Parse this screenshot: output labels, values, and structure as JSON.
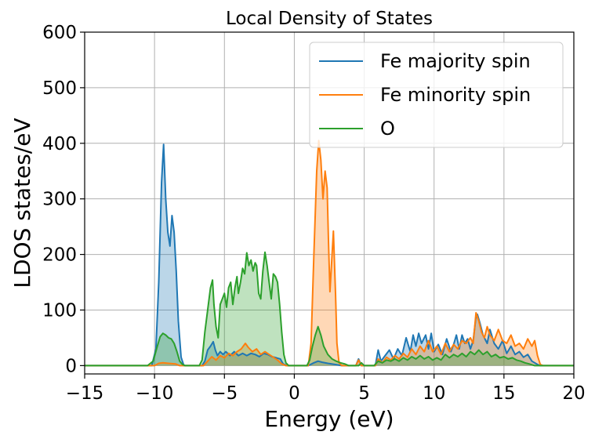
{
  "chart_data": {
    "type": "area",
    "title": "Local Density of States",
    "xlabel": "Energy (eV)",
    "ylabel": "LDOS states/eV",
    "xlim": [
      -15,
      20
    ],
    "ylim": [
      -15,
      600
    ],
    "xticks": [
      -15,
      -10,
      -5,
      0,
      5,
      10,
      15,
      20
    ],
    "xtick_labels": [
      "−15",
      "−10",
      "−5",
      "0",
      "5",
      "10",
      "15",
      "20"
    ],
    "yticks": [
      0,
      100,
      200,
      300,
      400,
      500,
      600
    ],
    "ytick_labels": [
      "0",
      "100",
      "200",
      "300",
      "400",
      "500",
      "600"
    ],
    "grid": true,
    "legend_position": "top-right",
    "series": [
      {
        "name": "Fe majority spin",
        "color": "#1f77b4",
        "fill": true,
        "points": [
          [
            -15,
            0
          ],
          [
            -10.2,
            0
          ],
          [
            -9.9,
            30
          ],
          [
            -9.7,
            150
          ],
          [
            -9.5,
            330
          ],
          [
            -9.35,
            398
          ],
          [
            -9.2,
            300
          ],
          [
            -9.05,
            240
          ],
          [
            -8.9,
            215
          ],
          [
            -8.75,
            270
          ],
          [
            -8.6,
            240
          ],
          [
            -8.45,
            170
          ],
          [
            -8.3,
            80
          ],
          [
            -8.1,
            15
          ],
          [
            -7.9,
            0
          ],
          [
            -6.6,
            0
          ],
          [
            -6.4,
            8
          ],
          [
            -6.2,
            28
          ],
          [
            -6.0,
            35
          ],
          [
            -5.8,
            43
          ],
          [
            -5.65,
            28
          ],
          [
            -5.5,
            18
          ],
          [
            -5.3,
            25
          ],
          [
            -5.1,
            20
          ],
          [
            -4.9,
            25
          ],
          [
            -4.6,
            18
          ],
          [
            -4.3,
            25
          ],
          [
            -4.0,
            18
          ],
          [
            -3.7,
            22
          ],
          [
            -3.4,
            18
          ],
          [
            -3.1,
            22
          ],
          [
            -2.8,
            20
          ],
          [
            -2.5,
            16
          ],
          [
            -2.2,
            22
          ],
          [
            -1.9,
            20
          ],
          [
            -1.6,
            16
          ],
          [
            -1.3,
            14
          ],
          [
            -1.0,
            12
          ],
          [
            -0.8,
            3
          ],
          [
            -0.5,
            0
          ],
          [
            1.0,
            0
          ],
          [
            1.4,
            5
          ],
          [
            1.7,
            8
          ],
          [
            2.0,
            6
          ],
          [
            2.4,
            4
          ],
          [
            2.9,
            2
          ],
          [
            3.4,
            0
          ],
          [
            4.4,
            0
          ],
          [
            4.6,
            12
          ],
          [
            4.8,
            0
          ],
          [
            5.8,
            0
          ],
          [
            6.0,
            28
          ],
          [
            6.2,
            8
          ],
          [
            6.5,
            18
          ],
          [
            6.8,
            28
          ],
          [
            7.1,
            12
          ],
          [
            7.4,
            30
          ],
          [
            7.7,
            18
          ],
          [
            8.0,
            50
          ],
          [
            8.3,
            25
          ],
          [
            8.5,
            55
          ],
          [
            8.7,
            35
          ],
          [
            8.9,
            58
          ],
          [
            9.1,
            40
          ],
          [
            9.4,
            55
          ],
          [
            9.6,
            30
          ],
          [
            9.8,
            58
          ],
          [
            10.0,
            25
          ],
          [
            10.3,
            38
          ],
          [
            10.6,
            20
          ],
          [
            10.9,
            48
          ],
          [
            11.2,
            25
          ],
          [
            11.4,
            38
          ],
          [
            11.6,
            55
          ],
          [
            11.8,
            30
          ],
          [
            12.0,
            55
          ],
          [
            12.2,
            40
          ],
          [
            12.4,
            48
          ],
          [
            12.6,
            30
          ],
          [
            12.8,
            45
          ],
          [
            13.0,
            88
          ],
          [
            13.1,
            92
          ],
          [
            13.3,
            75
          ],
          [
            13.5,
            55
          ],
          [
            13.8,
            40
          ],
          [
            14.0,
            65
          ],
          [
            14.3,
            40
          ],
          [
            14.6,
            30
          ],
          [
            14.9,
            45
          ],
          [
            15.2,
            22
          ],
          [
            15.5,
            35
          ],
          [
            15.8,
            20
          ],
          [
            16.1,
            25
          ],
          [
            16.4,
            15
          ],
          [
            16.7,
            20
          ],
          [
            17.0,
            8
          ],
          [
            17.4,
            2
          ],
          [
            17.6,
            0
          ],
          [
            20,
            0
          ]
        ]
      },
      {
        "name": "Fe minority spin",
        "color": "#ff7f0e",
        "fill": true,
        "points": [
          [
            -15,
            0
          ],
          [
            -10.0,
            0
          ],
          [
            -9.7,
            4
          ],
          [
            -9.4,
            5
          ],
          [
            -9.0,
            4
          ],
          [
            -8.5,
            3
          ],
          [
            -8.2,
            0
          ],
          [
            -6.5,
            0
          ],
          [
            -6.2,
            8
          ],
          [
            -5.9,
            16
          ],
          [
            -5.6,
            10
          ],
          [
            -5.3,
            18
          ],
          [
            -5.0,
            14
          ],
          [
            -4.7,
            22
          ],
          [
            -4.4,
            18
          ],
          [
            -4.1,
            25
          ],
          [
            -3.8,
            30
          ],
          [
            -3.5,
            40
          ],
          [
            -3.3,
            33
          ],
          [
            -3.0,
            25
          ],
          [
            -2.7,
            30
          ],
          [
            -2.4,
            20
          ],
          [
            -2.1,
            25
          ],
          [
            -1.8,
            20
          ],
          [
            -1.5,
            15
          ],
          [
            -1.2,
            10
          ],
          [
            -0.9,
            3
          ],
          [
            -0.6,
            0
          ],
          [
            1.0,
            0
          ],
          [
            1.2,
            40
          ],
          [
            1.4,
            200
          ],
          [
            1.6,
            350
          ],
          [
            1.75,
            405
          ],
          [
            1.9,
            370
          ],
          [
            2.05,
            300
          ],
          [
            2.2,
            350
          ],
          [
            2.35,
            320
          ],
          [
            2.45,
            220
          ],
          [
            2.55,
            133
          ],
          [
            2.7,
            200
          ],
          [
            2.8,
            242
          ],
          [
            2.95,
            130
          ],
          [
            3.05,
            40
          ],
          [
            3.2,
            5
          ],
          [
            3.4,
            0
          ],
          [
            4.4,
            0
          ],
          [
            4.6,
            10
          ],
          [
            4.8,
            0
          ],
          [
            5.8,
            0
          ],
          [
            6.0,
            12
          ],
          [
            6.3,
            5
          ],
          [
            6.6,
            15
          ],
          [
            6.9,
            10
          ],
          [
            7.2,
            18
          ],
          [
            7.5,
            12
          ],
          [
            7.8,
            22
          ],
          [
            8.1,
            15
          ],
          [
            8.4,
            30
          ],
          [
            8.7,
            20
          ],
          [
            9.0,
            35
          ],
          [
            9.3,
            25
          ],
          [
            9.6,
            45
          ],
          [
            9.9,
            25
          ],
          [
            10.2,
            35
          ],
          [
            10.5,
            20
          ],
          [
            10.8,
            40
          ],
          [
            11.1,
            25
          ],
          [
            11.4,
            38
          ],
          [
            11.7,
            30
          ],
          [
            12.0,
            45
          ],
          [
            12.3,
            40
          ],
          [
            12.6,
            50
          ],
          [
            12.8,
            40
          ],
          [
            13.0,
            95
          ],
          [
            13.2,
            80
          ],
          [
            13.4,
            60
          ],
          [
            13.6,
            50
          ],
          [
            13.8,
            70
          ],
          [
            14.0,
            55
          ],
          [
            14.3,
            45
          ],
          [
            14.6,
            65
          ],
          [
            14.9,
            45
          ],
          [
            15.2,
            40
          ],
          [
            15.5,
            55
          ],
          [
            15.8,
            35
          ],
          [
            16.1,
            40
          ],
          [
            16.4,
            30
          ],
          [
            16.7,
            48
          ],
          [
            17.0,
            35
          ],
          [
            17.2,
            45
          ],
          [
            17.4,
            18
          ],
          [
            17.6,
            2
          ],
          [
            17.8,
            0
          ],
          [
            20,
            0
          ]
        ]
      },
      {
        "name": "O",
        "color": "#2ca02c",
        "fill": true,
        "points": [
          [
            -15,
            0
          ],
          [
            -10.5,
            0
          ],
          [
            -10.1,
            8
          ],
          [
            -9.8,
            35
          ],
          [
            -9.6,
            52
          ],
          [
            -9.4,
            58
          ],
          [
            -9.2,
            55
          ],
          [
            -9.0,
            50
          ],
          [
            -8.8,
            48
          ],
          [
            -8.6,
            40
          ],
          [
            -8.4,
            25
          ],
          [
            -8.2,
            8
          ],
          [
            -8.0,
            2
          ],
          [
            -7.8,
            0
          ],
          [
            -6.8,
            0
          ],
          [
            -6.6,
            10
          ],
          [
            -6.4,
            60
          ],
          [
            -6.2,
            100
          ],
          [
            -6.0,
            140
          ],
          [
            -5.85,
            154
          ],
          [
            -5.75,
            110
          ],
          [
            -5.6,
            70
          ],
          [
            -5.45,
            50
          ],
          [
            -5.3,
            110
          ],
          [
            -5.15,
            120
          ],
          [
            -5.0,
            130
          ],
          [
            -4.85,
            105
          ],
          [
            -4.7,
            140
          ],
          [
            -4.55,
            150
          ],
          [
            -4.4,
            110
          ],
          [
            -4.25,
            140
          ],
          [
            -4.1,
            160
          ],
          [
            -4.0,
            130
          ],
          [
            -3.85,
            150
          ],
          [
            -3.7,
            175
          ],
          [
            -3.55,
            165
          ],
          [
            -3.4,
            203
          ],
          [
            -3.25,
            180
          ],
          [
            -3.1,
            190
          ],
          [
            -2.95,
            170
          ],
          [
            -2.8,
            185
          ],
          [
            -2.7,
            180
          ],
          [
            -2.55,
            130
          ],
          [
            -2.4,
            120
          ],
          [
            -2.25,
            170
          ],
          [
            -2.1,
            204
          ],
          [
            -1.95,
            180
          ],
          [
            -1.8,
            150
          ],
          [
            -1.65,
            120
          ],
          [
            -1.5,
            165
          ],
          [
            -1.35,
            160
          ],
          [
            -1.2,
            150
          ],
          [
            -1.05,
            110
          ],
          [
            -0.9,
            60
          ],
          [
            -0.75,
            20
          ],
          [
            -0.6,
            5
          ],
          [
            -0.4,
            0
          ],
          [
            0.9,
            0
          ],
          [
            1.1,
            10
          ],
          [
            1.3,
            35
          ],
          [
            1.5,
            55
          ],
          [
            1.7,
            70
          ],
          [
            1.9,
            55
          ],
          [
            2.1,
            35
          ],
          [
            2.4,
            20
          ],
          [
            2.7,
            12
          ],
          [
            3.0,
            8
          ],
          [
            3.3,
            5
          ],
          [
            3.6,
            3
          ],
          [
            3.9,
            0
          ],
          [
            4.6,
            0
          ],
          [
            4.8,
            5
          ],
          [
            5.0,
            0
          ],
          [
            5.7,
            0
          ],
          [
            6.0,
            8
          ],
          [
            6.3,
            5
          ],
          [
            6.6,
            10
          ],
          [
            6.9,
            8
          ],
          [
            7.2,
            12
          ],
          [
            7.5,
            8
          ],
          [
            7.8,
            14
          ],
          [
            8.1,
            10
          ],
          [
            8.4,
            16
          ],
          [
            8.7,
            12
          ],
          [
            9.0,
            18
          ],
          [
            9.3,
            12
          ],
          [
            9.6,
            16
          ],
          [
            9.9,
            10
          ],
          [
            10.2,
            14
          ],
          [
            10.5,
            10
          ],
          [
            10.8,
            20
          ],
          [
            11.1,
            14
          ],
          [
            11.4,
            20
          ],
          [
            11.7,
            16
          ],
          [
            12.0,
            22
          ],
          [
            12.3,
            16
          ],
          [
            12.6,
            25
          ],
          [
            12.9,
            20
          ],
          [
            13.2,
            28
          ],
          [
            13.5,
            20
          ],
          [
            13.8,
            25
          ],
          [
            14.1,
            16
          ],
          [
            14.4,
            20
          ],
          [
            14.7,
            14
          ],
          [
            15.0,
            16
          ],
          [
            15.3,
            12
          ],
          [
            15.6,
            14
          ],
          [
            15.9,
            10
          ],
          [
            16.2,
            8
          ],
          [
            16.5,
            5
          ],
          [
            16.8,
            3
          ],
          [
            17.2,
            0
          ],
          [
            20,
            0
          ]
        ]
      }
    ]
  }
}
